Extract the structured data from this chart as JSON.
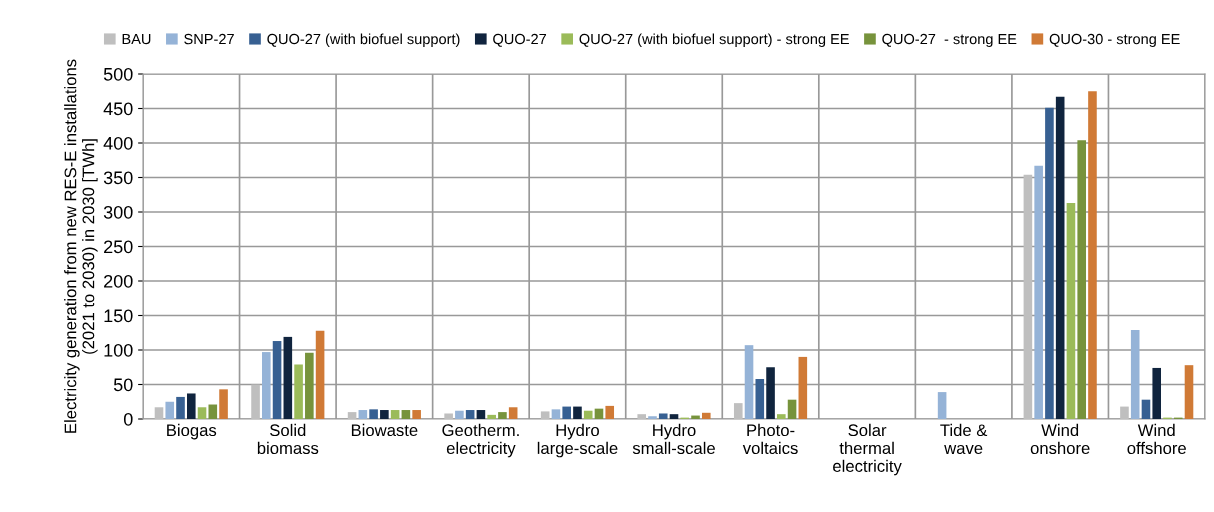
{
  "chart_data": {
    "type": "bar",
    "ylabel": "Electricity generation from new RES-E installations\n(2021 to 2030) in 2030 [TWh]",
    "categories": [
      "Biogas",
      "Solid\nbiomass",
      "Biowaste",
      "Geotherm.\nelectricity",
      "Hydro\nlarge-scale",
      "Hydro\nsmall-scale",
      "Photo-\nvoltaics",
      "Solar\nthermal\nelectricity",
      "Tide &\nwave",
      "Wind\nonshore",
      "Wind\noffshore"
    ],
    "series": [
      {
        "name": "BAU",
        "color": "#bfbfbf",
        "values": [
          17,
          50,
          10,
          8,
          11,
          7,
          23,
          0,
          0,
          354,
          18
        ]
      },
      {
        "name": "SNP-27",
        "color": "#95b3d7",
        "values": [
          25,
          97,
          13,
          12,
          14,
          4,
          107,
          0,
          39,
          367,
          129
        ]
      },
      {
        "name": "QUO-27 (with biofuel support)",
        "color": "#376092",
        "values": [
          32,
          113,
          14,
          13,
          18,
          8,
          58,
          0,
          0,
          451,
          28
        ]
      },
      {
        "name": "QUO-27",
        "color": "#10243e",
        "values": [
          37,
          119,
          13,
          13,
          18,
          7,
          75,
          0,
          0,
          467,
          74
        ]
      },
      {
        "name": "QUO-27 (with biofuel support) - strong EE",
        "color": "#9bbb59",
        "values": [
          17,
          79,
          13,
          6,
          12,
          2,
          7,
          0,
          0,
          313,
          2
        ]
      },
      {
        "name": "QUO-27  - strong EE",
        "color": "#77933c",
        "values": [
          21,
          96,
          13,
          10,
          15,
          5,
          28,
          0,
          0,
          404,
          2
        ]
      },
      {
        "name": "QUO-30 - strong EE",
        "color": "#d07a36",
        "values": [
          43,
          128,
          13,
          17,
          19,
          9,
          90,
          0,
          0,
          475,
          78
        ]
      }
    ],
    "ylim": [
      0,
      500
    ],
    "yticks": [
      0,
      50,
      100,
      150,
      200,
      250,
      300,
      350,
      400,
      450,
      500
    ],
    "grid": true,
    "legend": "top"
  }
}
